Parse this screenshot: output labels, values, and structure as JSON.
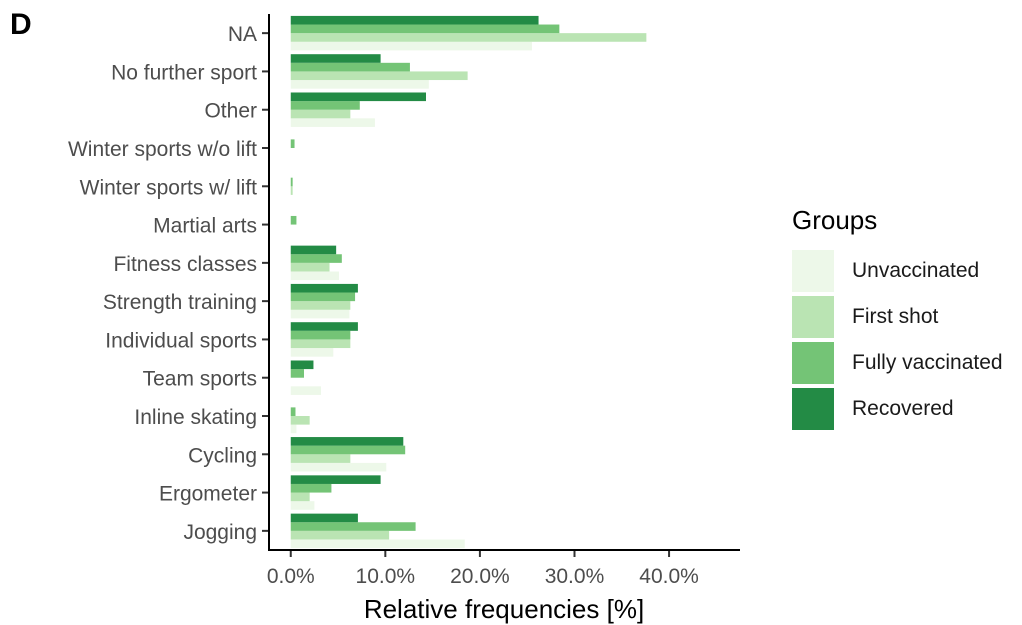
{
  "panel_label": "D",
  "chart_data": {
    "type": "bar",
    "orientation": "horizontal",
    "categories": [
      "NA",
      "No further sport",
      "Other",
      "Winter sports w/o lift",
      "Winter sports w/ lift",
      "Martial arts",
      "Fitness classes",
      "Strength training",
      "Individual sports",
      "Team sports",
      "Inline skating",
      "Cycling",
      "Ergometer",
      "Jogging"
    ],
    "series": [
      {
        "name": "Unvaccinated",
        "color": "#edf8e9",
        "values": [
          25.5,
          14.6,
          8.9,
          0.0,
          0.0,
          0.0,
          5.1,
          6.2,
          4.5,
          3.2,
          0.6,
          10.1,
          2.5,
          18.4
        ]
      },
      {
        "name": "First shot",
        "color": "#bae4b3",
        "values": [
          37.6,
          18.7,
          6.3,
          0.0,
          0.2,
          0.0,
          4.1,
          6.3,
          6.3,
          0.0,
          2.0,
          6.3,
          2.0,
          10.4
        ]
      },
      {
        "name": "Fully vaccinated",
        "color": "#74c476",
        "values": [
          28.4,
          12.6,
          7.3,
          0.4,
          0.2,
          0.6,
          5.4,
          6.8,
          6.3,
          1.4,
          0.5,
          12.1,
          4.3,
          13.2
        ]
      },
      {
        "name": "Recovered",
        "color": "#238b45",
        "values": [
          26.2,
          9.5,
          14.3,
          0.0,
          0.0,
          0.0,
          4.8,
          7.1,
          7.1,
          2.4,
          0.0,
          11.9,
          9.5,
          7.1
        ]
      }
    ],
    "xlabel": "Relative frequencies [%]",
    "ylabel": "",
    "xlim": [
      -2.3,
      47.5
    ],
    "xticks": [
      0,
      10,
      20,
      30,
      40
    ],
    "xtick_labels": [
      "0.0%",
      "10.0%",
      "20.0%",
      "30.0%",
      "40.0%"
    ],
    "grid": false,
    "legend": {
      "title": "Groups",
      "position": "right"
    }
  }
}
